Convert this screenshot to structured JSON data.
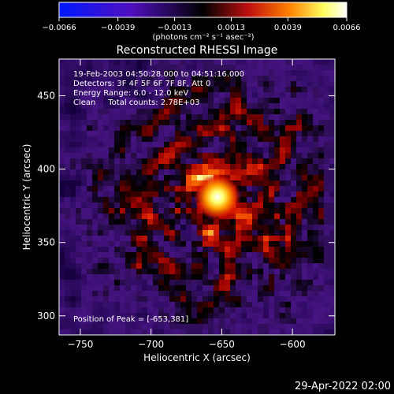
{
  "chart_data": {
    "type": "heatmap",
    "title": "Reconstructed RHESSI Image",
    "xlabel": "Heliocentric X (arcsec)",
    "ylabel": "Heliocentric Y (arcsec)",
    "xlim": [
      -765,
      -570
    ],
    "ylim": [
      287,
      475
    ],
    "x_ticks": [
      -750,
      -700,
      -650,
      -600
    ],
    "x_tick_labels": [
      "−750",
      "−700",
      "−650",
      "−600"
    ],
    "y_ticks": [
      300,
      350,
      400,
      450
    ],
    "y_tick_labels": [
      "300",
      "350",
      "400",
      "450"
    ],
    "colorbar": {
      "range": [
        -0.0066,
        0.0066
      ],
      "ticks": [
        -0.0066,
        -0.0039,
        -0.0013,
        0.0013,
        0.0039,
        0.0066
      ],
      "tick_labels": [
        "−0.0066",
        "−0.0039",
        "−0.0013",
        "0.0013",
        "0.0039",
        "0.0066"
      ],
      "units_label": "(photons cm⁻² s⁻¹ asec⁻²)",
      "colors": [
        "#0018ff",
        "#5010c0",
        "#000000",
        "#c01010",
        "#ff8000",
        "#ffff60",
        "#ffffff"
      ]
    },
    "peak": {
      "x": -653,
      "y": 381
    },
    "info_lines": [
      "19-Feb-2003 04:50:28.000 to 04:51:16.000",
      "Detectors: 3F 4F 5F 6F 7F 8F, Att 0",
      "Energy Range: 6.0 - 12.0 keV",
      "Clean     Total counts: 2.78E+03"
    ],
    "peak_label": "Position of Peak = [-653,381]"
  },
  "footer": {
    "date": "29-Apr-2022 02:00"
  }
}
